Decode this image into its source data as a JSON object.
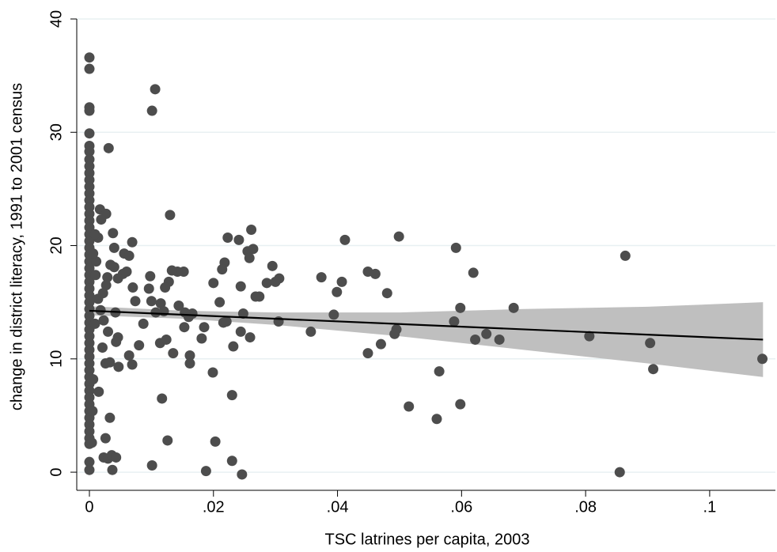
{
  "chart_data": {
    "type": "scatter",
    "x_label": "TSC latrines per capita, 2003",
    "y_label": "change in district literacy, 1991 to 2001 census",
    "xlim": [
      -0.00204,
      0.1106
    ],
    "ylim": [
      -1.6,
      40.0
    ],
    "xticks": [
      0,
      {
        "value": 0.02,
        "label": ".02"
      },
      {
        "value": 0.04,
        "label": ".04"
      },
      {
        "value": 0.06,
        "label": ".06"
      },
      {
        "value": 0.08,
        "label": ".08"
      },
      {
        "value": 0.1,
        "label": ".1"
      }
    ],
    "yticks": [
      0,
      10,
      20,
      30,
      40
    ],
    "grid": true,
    "color": "#4d4d4d",
    "fit_color": "#000000",
    "band_color": "#bfbfbf",
    "x": [
      0,
      0,
      0,
      0,
      0,
      0,
      0,
      0,
      0,
      0,
      0,
      0,
      0,
      0,
      0,
      0,
      0,
      0,
      0,
      0,
      0,
      0,
      0,
      0,
      0,
      0,
      0,
      0,
      0,
      0,
      0,
      0,
      0,
      0,
      0,
      0,
      0,
      0,
      0,
      0,
      0,
      0,
      0,
      0,
      0,
      0,
      0,
      0,
      0,
      0,
      0,
      0,
      0.0031,
      0.0101,
      0.0106,
      0.013,
      0.0261,
      0.0223,
      0.0241,
      0.0412,
      0.0499,
      0.0591,
      0.0864,
      0.0038,
      0.0069,
      0.004,
      0.0056,
      0.0064,
      0.0255,
      0.0264,
      0.0258,
      0.0218,
      0.0214,
      0.0295,
      0.0306,
      0.03,
      0.0286,
      0.0274,
      0.0268,
      0.0244,
      0.02,
      0.021,
      0.0374,
      0.0407,
      0.0399,
      0.0449,
      0.0461,
      0.048,
      0.0619,
      0.0598,
      0.0684,
      0.0394,
      0.0305,
      0.0357,
      0.0588,
      0.0622,
      0.064,
      0.0661,
      0.0495,
      0.0492,
      0.047,
      0.0449,
      0.0806,
      0.0904,
      0.0909,
      0.1085,
      0.0564,
      0.0515,
      0.0598,
      0.056,
      0.0855,
      0.0246,
      0.023,
      0.0188,
      0.0101,
      0.0203,
      0.023,
      0.0117,
      0.0126,
      0.0033,
      0.0026,
      0.0023,
      0.003,
      0.0037,
      0.0036,
      0.0043,
      0.0015,
      0.0199,
      0.0162,
      0.0162,
      0.0135,
      0.0114,
      0.0124,
      0.0181,
      0.0185,
      0.0216,
      0.0221,
      0.0232,
      0.0244,
      0.0259,
      0.0248,
      0.0154,
      0.0153,
      0.016,
      0.0166,
      0.0144,
      0.0152,
      0.0142,
      0.0133,
      0.0128,
      0.0122,
      0.0098,
      0.0096,
      0.01,
      0.0115,
      0.012,
      0.0107,
      0.0087,
      0.0074,
      0.007,
      0.006,
      0.0054,
      0.008,
      0.0069,
      0.0064,
      0.0047,
      0.0046,
      0.0043,
      0.0042,
      0.004,
      0.0034,
      0.0029,
      0.0046,
      0.0014,
      0.0009,
      0.0017,
      0.0027,
      0.0019,
      0.0026,
      0.0033,
      0.0021,
      0.003,
      0.0023,
      0.0018,
      0.0014,
      0.0022,
      0.0027,
      0.001,
      0.0011,
      0.0006,
      0.0009,
      0.0006,
      0.0005,
      0.0004
    ],
    "y": [
      36.6,
      35.6,
      32.2,
      31.9,
      29.9,
      28.8,
      28.3,
      27.6,
      27.0,
      26.4,
      25.8,
      25.2,
      24.6,
      24.0,
      23.4,
      22.8,
      22.2,
      21.6,
      21.0,
      20.4,
      19.8,
      19.2,
      18.6,
      18.0,
      17.4,
      16.8,
      16.2,
      15.6,
      15.0,
      14.4,
      13.8,
      13.2,
      12.6,
      12.0,
      11.4,
      10.8,
      10.2,
      9.6,
      9.0,
      8.4,
      7.8,
      7.2,
      6.6,
      6.0,
      5.4,
      4.8,
      4.2,
      3.6,
      3.0,
      2.5,
      0.9,
      0.2,
      28.6,
      31.9,
      33.8,
      22.7,
      21.4,
      20.7,
      20.5,
      20.5,
      20.8,
      19.8,
      19.1,
      21.1,
      20.3,
      19.8,
      19.3,
      19.1,
      19.5,
      19.7,
      18.9,
      18.5,
      17.9,
      18.2,
      17.1,
      16.8,
      16.7,
      15.5,
      15.5,
      16.4,
      16.7,
      15.0,
      17.2,
      16.8,
      15.9,
      17.7,
      17.5,
      15.8,
      17.6,
      14.5,
      14.5,
      13.9,
      13.3,
      12.4,
      13.3,
      11.7,
      12.2,
      11.7,
      12.6,
      12.2,
      11.3,
      10.5,
      12.0,
      11.4,
      9.1,
      10.0,
      8.9,
      5.8,
      6.0,
      4.7,
      0.0,
      -0.2,
      1.0,
      0.1,
      0.6,
      2.7,
      6.8,
      6.5,
      2.8,
      4.8,
      3.0,
      1.3,
      1.2,
      0.2,
      1.5,
      1.3,
      7.1,
      8.8,
      10.3,
      9.6,
      10.5,
      11.4,
      11.7,
      11.8,
      12.8,
      13.2,
      13.3,
      11.1,
      12.4,
      11.9,
      14.0,
      14.1,
      12.8,
      13.7,
      14.0,
      14.7,
      17.7,
      17.7,
      17.8,
      16.8,
      16.3,
      17.3,
      16.2,
      15.1,
      14.9,
      14.2,
      14.1,
      13.1,
      15.1,
      16.3,
      17.7,
      17.5,
      11.2,
      9.5,
      10.3,
      9.3,
      11.9,
      11.5,
      14.1,
      18.1,
      18.3,
      17.2,
      17.1,
      20.7,
      21.0,
      23.2,
      22.8,
      22.3,
      9.6,
      9.7,
      11.0,
      12.4,
      13.4,
      14.3,
      15.3,
      15.8,
      16.5,
      17.4,
      18.6,
      19.3,
      13.1,
      8.2,
      5.4,
      2.6
    ],
    "fit": {
      "x": [
        0,
        0.1086
      ],
      "y": [
        14.25,
        11.7
      ]
    },
    "band": {
      "x": [
        0,
        0.015,
        0.03,
        0.05,
        0.07,
        0.09,
        0.1086
      ],
      "upper": [
        14.65,
        14.25,
        14.1,
        14.1,
        14.4,
        14.6,
        15.0
      ],
      "lower": [
        13.85,
        13.55,
        13.0,
        12.0,
        10.8,
        9.6,
        8.4
      ]
    }
  }
}
